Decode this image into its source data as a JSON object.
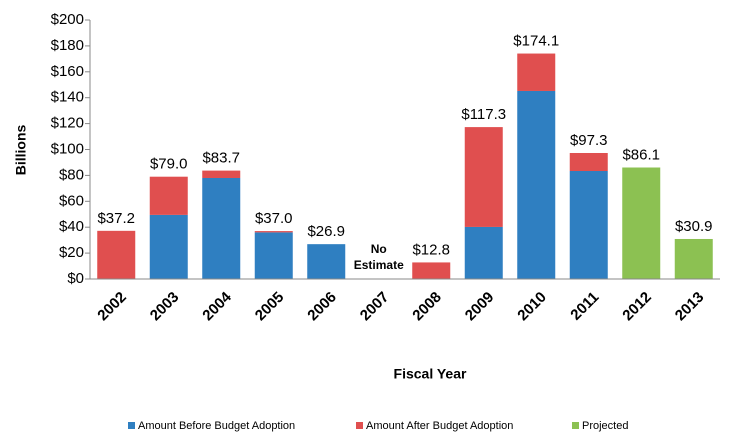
{
  "chart_data": {
    "type": "stacked_bar",
    "y_label": "Billions",
    "x_label": "Fiscal Year",
    "categories": [
      "2002",
      "2003",
      "2004",
      "2005",
      "2006",
      "2007",
      "2008",
      "2009",
      "2010",
      "2011",
      "2012",
      "2013"
    ],
    "series": [
      {
        "name": "Amount Before Budget Adoption",
        "color": "#2f7fc1",
        "values": [
          null,
          49.5,
          78,
          36,
          26.9,
          null,
          null,
          40.2,
          145.2,
          83.4,
          null,
          null
        ]
      },
      {
        "name": "Amount After Budget Adoption",
        "color": "#e04f4f",
        "values": [
          37.2,
          29.5,
          5.7,
          1.0,
          null,
          null,
          12.8,
          77.1,
          28.9,
          13.9,
          null,
          null
        ]
      },
      {
        "name": "Projected",
        "color": "#8cc152",
        "values": [
          null,
          null,
          null,
          null,
          null,
          null,
          null,
          null,
          null,
          null,
          86.1,
          30.9
        ]
      }
    ],
    "totals": [
      37.2,
      79.0,
      83.7,
      37.0,
      26.9,
      null,
      12.8,
      117.3,
      174.1,
      97.3,
      86.1,
      30.9
    ],
    "total_labels": [
      "$37.2",
      "$79.0",
      "$83.7",
      "$37.0",
      "$26.9",
      null,
      "$12.8",
      "$117.3",
      "$174.1",
      "$97.3",
      "$86.1",
      "$30.9"
    ],
    "note": "No Estimate",
    "note_category": 5,
    "ylim": [
      0,
      200
    ],
    "yticks": [
      {
        "value": 0,
        "label": "$0"
      },
      {
        "value": 20,
        "label": "$20"
      },
      {
        "value": 40,
        "label": "$40"
      },
      {
        "value": 60,
        "label": "$60"
      },
      {
        "value": 80,
        "label": "$80"
      },
      {
        "value": 100,
        "label": "$100"
      },
      {
        "value": 120,
        "label": "$120"
      },
      {
        "value": 140,
        "label": "$140"
      },
      {
        "value": 160,
        "label": "$160"
      },
      {
        "value": 180,
        "label": "$180"
      },
      {
        "value": 200,
        "label": "$200"
      }
    ],
    "legend": "bottom"
  }
}
